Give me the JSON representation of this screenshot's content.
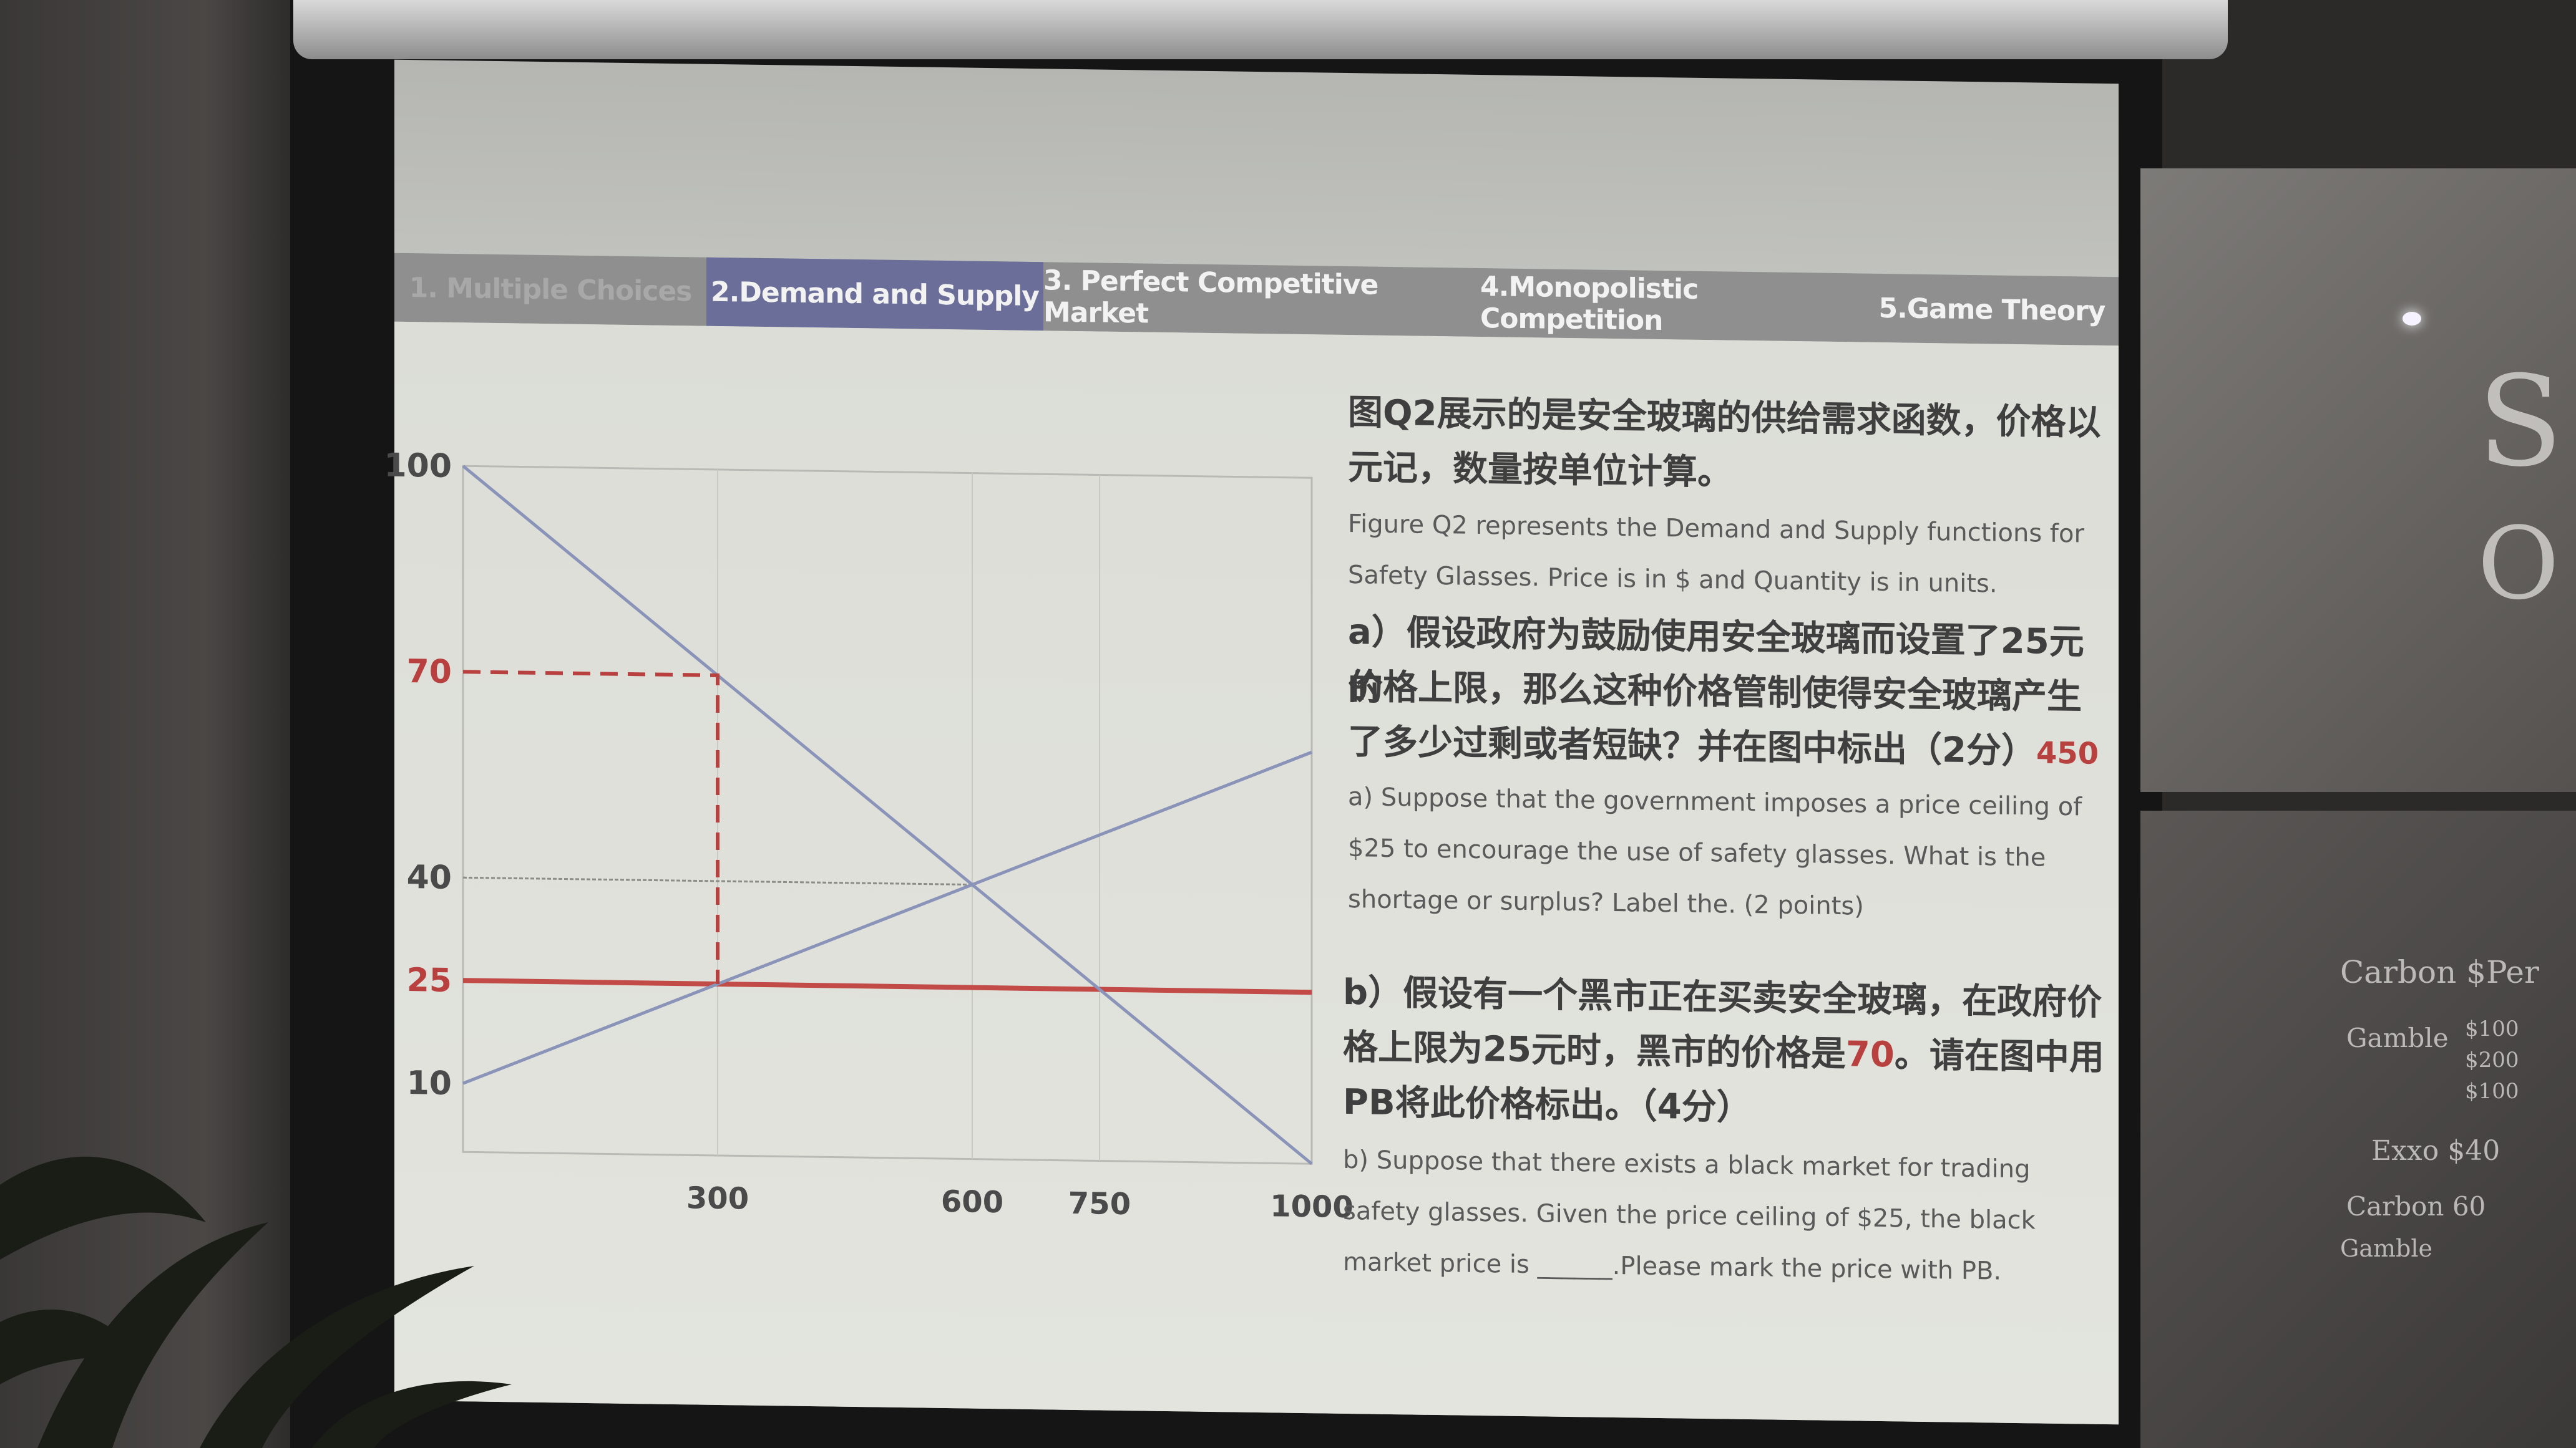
{
  "nav": {
    "tabs": [
      {
        "label": "1. Multiple Choices"
      },
      {
        "label": "2.Demand and Supply"
      },
      {
        "label": "3. Perfect Competitive Market"
      },
      {
        "label": "4.Monopolistic Competition"
      },
      {
        "label": "5.Game Theory"
      }
    ]
  },
  "question": {
    "intro_zh": "图Q2展示的是安全玻璃的供给需求函数，价格以元记，数量按单位计算。",
    "intro_zh_l1": "图Q2展示的是安全玻璃的供给需求函数，价格以",
    "intro_zh_l2": "元记，数量按单位计算。",
    "intro_en_l1": "Figure Q2 represents the Demand and Supply functions for",
    "intro_en_l2": "Safety Glasses. Price is in $ and Quantity is in units.",
    "a_zh_l1": "a）假设政府为鼓励使用安全玻璃而设置了25元的",
    "a_zh_l2": "价格上限，那么这种价格管制使得安全玻璃产生",
    "a_zh_l3": "了多少过剩或者短缺？并在图中标出（2分）",
    "a_answer": "450",
    "a_en_l1": "a) Suppose that the government imposes a price ceiling of",
    "a_en_l2": "$25 to encourage the use of safety glasses.  What is the",
    "a_en_l3": "shortage or surplus? Label the. (2 points)",
    "b_zh_l1": "b）假设有一个黑市正在买卖安全玻璃，在政府价",
    "b_zh_l2a": "格上限为25元时，黑市的价格是",
    "b_zh_answer": "70",
    "b_zh_l2b": "。请在图中用",
    "b_zh_l3": "PB将此价格标出。（4分）",
    "b_en_l1": "b) Suppose that there exists a black market for trading",
    "b_en_l2": "safety glasses. Given the price ceiling of $25, the black",
    "b_en_l3": "market price is ______.Please mark the price with PB."
  },
  "chart_data": {
    "type": "line",
    "xlim": [
      0,
      1000
    ],
    "ylim": [
      0,
      100
    ],
    "x_ticks": [
      300,
      600,
      750,
      1000
    ],
    "y_ticks": [
      100,
      70,
      40,
      25,
      10
    ],
    "highlight_ticks": [
      70,
      25
    ],
    "series": [
      {
        "role": "demand",
        "points": [
          [
            0,
            100
          ],
          [
            1000,
            0
          ]
        ],
        "color": "#8a93b8"
      },
      {
        "role": "supply",
        "points": [
          [
            0,
            10
          ],
          [
            1000,
            60
          ]
        ],
        "color": "#8a93b8"
      }
    ],
    "reference_lines": [
      {
        "kind": "price-ceiling",
        "y": 25,
        "color": "#c24a47"
      },
      {
        "kind": "equilibrium-price",
        "y": 40,
        "from_x": 0,
        "to_x": 600
      },
      {
        "kind": "black-market-guide",
        "points": [
          [
            0,
            70
          ],
          [
            300,
            70
          ],
          [
            300,
            25
          ]
        ],
        "color": "#b8403f"
      }
    ],
    "vertical_guides": [
      300,
      600,
      750
    ]
  },
  "whiteboard": {
    "s_letter": "S",
    "o_letter": "O",
    "notes": [
      "Carbon $Per",
      "Gamble",
      "$100",
      "$200",
      "$100",
      "Exxo $40",
      "Carbon 60",
      "Gamble"
    ]
  }
}
